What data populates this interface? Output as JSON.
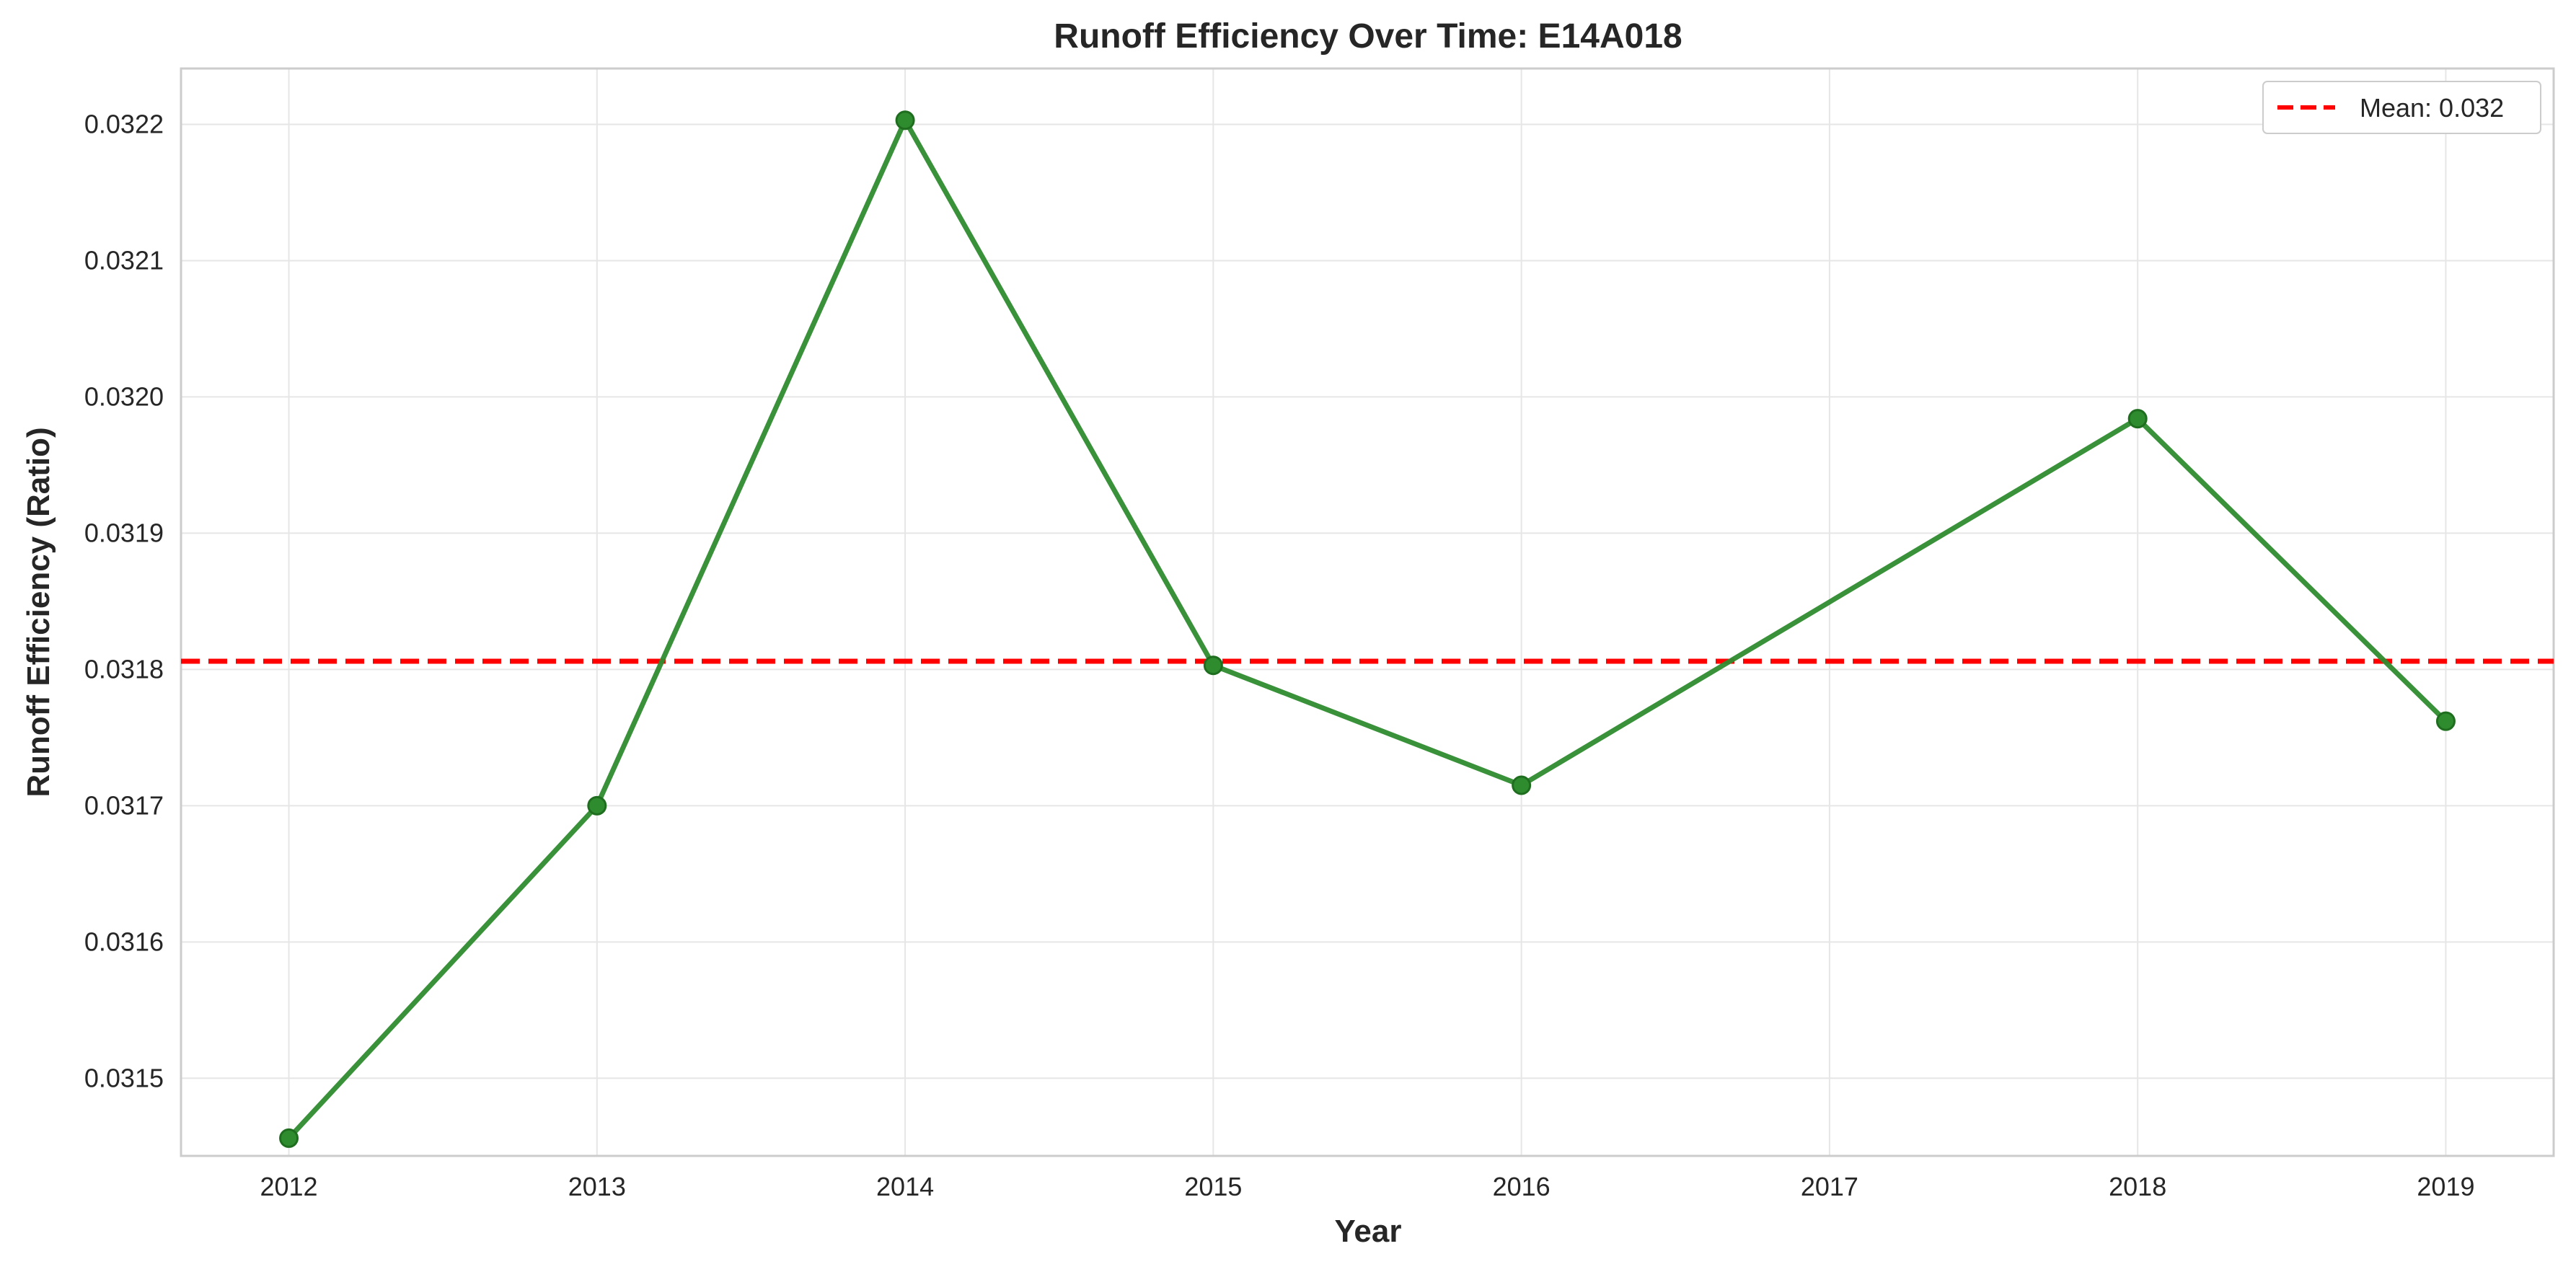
{
  "chart_data": {
    "type": "line",
    "title": "Runoff Efficiency Over Time: E14A018",
    "xlabel": "Year",
    "ylabel": "Runoff Efficiency (Ratio)",
    "x": [
      2012,
      2013,
      2014,
      2015,
      2016,
      2018,
      2019
    ],
    "series": [
      {
        "name": "",
        "values": [
          0.031456,
          0.0317,
          0.032203,
          0.031803,
          0.031715,
          0.031984,
          0.031762
        ],
        "color": "#2e8b2e",
        "marker": "circle"
      }
    ],
    "reference_lines": [
      {
        "label": "Mean: 0.032",
        "y": 0.031806,
        "color": "#ff0000",
        "style": "dashed"
      }
    ],
    "xticks": [
      "2012",
      "2013",
      "2014",
      "2015",
      "2016",
      "2017",
      "2018",
      "2019"
    ],
    "yticks": [
      "0.0315",
      "0.0316",
      "0.0317",
      "0.0318",
      "0.0319",
      "0.0320",
      "0.0321",
      "0.0322"
    ],
    "xlim": [
      2011.65,
      2019.35
    ],
    "ylim": [
      0.031443,
      0.032241
    ],
    "grid": true,
    "legend_position": "top-right"
  }
}
